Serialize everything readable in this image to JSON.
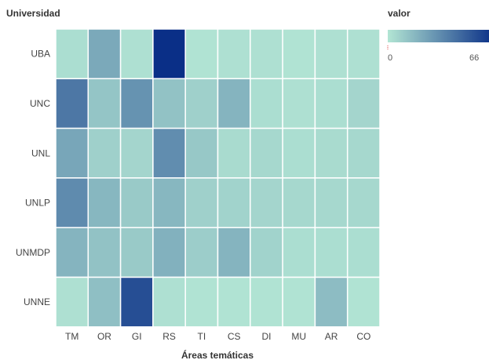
{
  "chart_data": {
    "type": "heatmap",
    "ylabel": "Universidad",
    "xlabel": "Áreas temáticas",
    "legend_title": "valor",
    "legend_min": "0",
    "legend_max": "66",
    "colors": {
      "low": "#b3e6d4",
      "high": "#0a2f87"
    },
    "x_categories": [
      "TM",
      "OR",
      "GI",
      "RS",
      "TI",
      "CS",
      "DI",
      "MU",
      "AR",
      "CO"
    ],
    "y_categories": [
      "UBA",
      "UNC",
      "UNL",
      "UNLP",
      "UNMDP",
      "UNNE"
    ],
    "values": [
      [
        3,
        22,
        2,
        66,
        1,
        2,
        2,
        1,
        2,
        2
      ],
      [
        40,
        12,
        30,
        13,
        8,
        18,
        3,
        2,
        3,
        6
      ],
      [
        23,
        8,
        6,
        32,
        11,
        4,
        5,
        3,
        4,
        5
      ],
      [
        33,
        17,
        10,
        17,
        8,
        7,
        6,
        5,
        5,
        5
      ],
      [
        18,
        13,
        10,
        19,
        9,
        18,
        7,
        3,
        3,
        3
      ],
      [
        2,
        14,
        55,
        2,
        1,
        1,
        1,
        1,
        15,
        1
      ]
    ]
  }
}
